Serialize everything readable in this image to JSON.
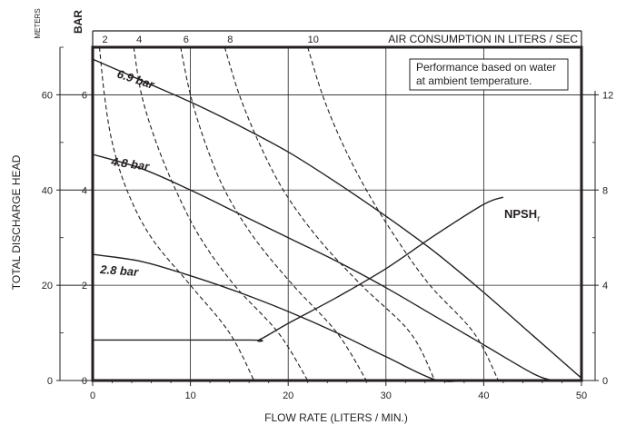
{
  "chart_data": {
    "type": "line",
    "xlabel": "FLOW RATE (LITERS / MIN.)",
    "ylabel": "TOTAL DISCHARGE HEAD",
    "ylabel_units_left": "METERS",
    "ylabel_units_left2": "BAR",
    "top_axis_title": "AIR CONSUMPTION IN LITERS / SEC",
    "note_lines": [
      "Performance based on water",
      "at ambient temperature."
    ],
    "xlim": [
      0,
      50
    ],
    "ylim_meters": [
      0,
      70
    ],
    "ylim_bar": [
      0,
      7
    ],
    "xticks": [
      "0",
      "10",
      "20",
      "30",
      "40",
      "50"
    ],
    "yticks_meters": [
      "0",
      "20",
      "40",
      "60"
    ],
    "yticks_bar": [
      "0",
      "2",
      "4",
      "6"
    ],
    "yticks_npsh": [
      "0",
      "4",
      "8",
      "12"
    ],
    "top_ticks": [
      "2",
      "4",
      "6",
      "8",
      "10"
    ],
    "grid": true,
    "pressure_series": [
      {
        "name": "6.9 bar",
        "label_text": "6.9 bar",
        "x": [
          0,
          5,
          10,
          15,
          20,
          25,
          30,
          35,
          40,
          45,
          50
        ],
        "y": [
          6.75,
          6.3,
          5.85,
          5.35,
          4.8,
          4.15,
          3.45,
          2.7,
          1.85,
          0.95,
          0.05
        ]
      },
      {
        "name": "4.8 bar",
        "label_text": "4.8 bar",
        "x": [
          0,
          5,
          10,
          15,
          20,
          25,
          30,
          35,
          40,
          45,
          47
        ],
        "y": [
          4.75,
          4.45,
          4.0,
          3.5,
          3.0,
          2.5,
          1.95,
          1.35,
          0.75,
          0.15,
          0.0
        ]
      },
      {
        "name": "2.8 bar",
        "label_text": "2.8 bar",
        "x": [
          0,
          5,
          10,
          15,
          20,
          25,
          30,
          35,
          38
        ],
        "y": [
          2.65,
          2.5,
          2.2,
          1.85,
          1.45,
          1.0,
          0.5,
          0.02,
          0.0
        ]
      }
    ],
    "npsh_series": {
      "name": "NPSHr",
      "label_main": "NPSH",
      "label_sub": "r",
      "x": [
        0,
        16,
        17,
        20,
        25,
        30,
        35,
        40,
        42
      ],
      "y": [
        0.85,
        0.85,
        0.85,
        1.2,
        1.75,
        2.35,
        3.05,
        3.7,
        3.85
      ]
    },
    "air_consumption_series": [
      {
        "label": "2",
        "x": [
          0.7,
          1.2,
          2.0,
          3.5,
          6.0,
          10.0,
          14.0,
          16.5
        ],
        "y": [
          7.0,
          6.0,
          5.0,
          4.0,
          3.0,
          2.0,
          1.0,
          0.0
        ]
      },
      {
        "label": "4",
        "x": [
          4.2,
          5.0,
          6.5,
          8.5,
          11.0,
          14.5,
          19.0,
          22.0
        ],
        "y": [
          7.0,
          6.0,
          5.0,
          4.0,
          3.0,
          2.0,
          1.0,
          0.0
        ]
      },
      {
        "label": "6",
        "x": [
          9.0,
          10.0,
          11.5,
          13.5,
          16.5,
          20.5,
          25.0,
          28.0
        ],
        "y": [
          7.0,
          6.0,
          5.0,
          4.0,
          3.0,
          2.0,
          1.0,
          0.0
        ]
      },
      {
        "label": "8",
        "x": [
          13.5,
          15.0,
          17.0,
          19.5,
          23.0,
          27.5,
          32.5,
          35.0
        ],
        "y": [
          7.0,
          6.0,
          5.0,
          4.0,
          3.0,
          2.0,
          1.0,
          0.0
        ]
      },
      {
        "label": "10",
        "x": [
          22.0,
          23.5,
          25.5,
          28.0,
          31.0,
          34.5,
          39.0,
          41.5
        ],
        "y": [
          7.0,
          6.0,
          5.0,
          4.0,
          3.0,
          2.0,
          1.0,
          0.0
        ]
      }
    ],
    "colors": {
      "line": "#231f20",
      "grid": "#231f20",
      "background": "#ffffff"
    }
  }
}
